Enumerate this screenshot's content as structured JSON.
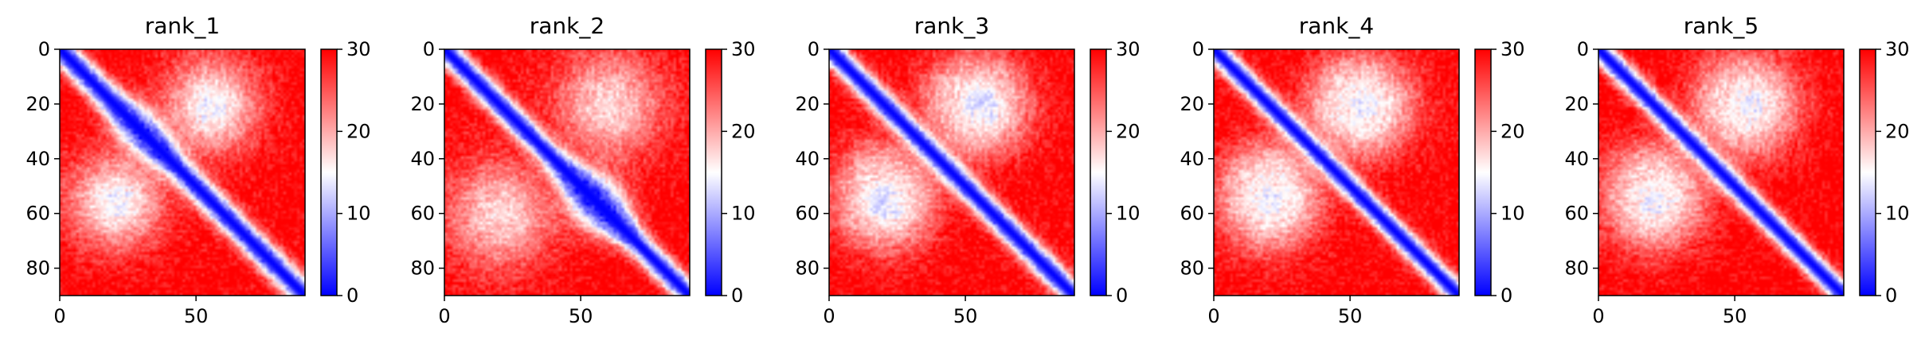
{
  "chart_data": [
    {
      "type": "heatmap",
      "title": "rank_1",
      "n": 90,
      "xticks": [
        0,
        50
      ],
      "yticks": [
        0,
        20,
        40,
        60,
        80
      ],
      "xlim": [
        0,
        90
      ],
      "ylim": [
        90,
        0
      ],
      "colorbar": {
        "ticks": [
          0,
          10,
          20,
          30
        ],
        "range": [
          0,
          30
        ],
        "colormap": "bwr",
        "colors": [
          "#0000ff",
          "#ffffff",
          "#ff0000"
        ]
      },
      "band_width": 6.5,
      "features": [
        {
          "type": "widening",
          "center": 30,
          "extra": 4
        },
        {
          "type": "blob",
          "i": 55,
          "j": 20,
          "r": 12,
          "value": 14
        }
      ]
    },
    {
      "type": "heatmap",
      "title": "rank_2",
      "n": 90,
      "xticks": [
        0,
        50
      ],
      "yticks": [
        0,
        20,
        40,
        60,
        80
      ],
      "xlim": [
        0,
        90
      ],
      "ylim": [
        90,
        0
      ],
      "colorbar": {
        "ticks": [
          0,
          10,
          20,
          30
        ],
        "range": [
          0,
          30
        ],
        "colormap": "bwr",
        "colors": [
          "#0000ff",
          "#ffffff",
          "#ff0000"
        ]
      },
      "band_width": 6,
      "features": [
        {
          "type": "widening",
          "center": 55,
          "extra": 7
        },
        {
          "type": "blob",
          "i": 60,
          "j": 20,
          "r": 14,
          "value": 17
        }
      ]
    },
    {
      "type": "heatmap",
      "title": "rank_3",
      "n": 90,
      "xticks": [
        0,
        50
      ],
      "yticks": [
        0,
        20,
        40,
        60,
        80
      ],
      "xlim": [
        0,
        90
      ],
      "ylim": [
        90,
        0
      ],
      "colorbar": {
        "ticks": [
          0,
          10,
          20,
          30
        ],
        "range": [
          0,
          30
        ],
        "colormap": "bwr",
        "colors": [
          "#0000ff",
          "#ffffff",
          "#ff0000"
        ]
      },
      "band_width": 6,
      "features": [
        {
          "type": "blob",
          "i": 55,
          "j": 20,
          "r": 12,
          "value": 13
        },
        {
          "type": "blob",
          "i": 20,
          "j": 50,
          "r": 10,
          "value": 18
        }
      ]
    },
    {
      "type": "heatmap",
      "title": "rank_4",
      "n": 90,
      "xticks": [
        0,
        50
      ],
      "yticks": [
        0,
        20,
        40,
        60,
        80
      ],
      "xlim": [
        0,
        90
      ],
      "ylim": [
        90,
        0
      ],
      "colorbar": {
        "ticks": [
          0,
          10,
          20,
          30
        ],
        "range": [
          0,
          30
        ],
        "colormap": "bwr",
        "colors": [
          "#0000ff",
          "#ffffff",
          "#ff0000"
        ]
      },
      "band_width": 5.5,
      "features": [
        {
          "type": "blob",
          "i": 55,
          "j": 20,
          "r": 12,
          "value": 14
        },
        {
          "type": "blob",
          "i": 20,
          "j": 50,
          "r": 10,
          "value": 16
        }
      ]
    },
    {
      "type": "heatmap",
      "title": "rank_5",
      "n": 90,
      "xticks": [
        0,
        50
      ],
      "yticks": [
        0,
        20,
        40,
        60,
        80
      ],
      "xlim": [
        0,
        90
      ],
      "ylim": [
        90,
        0
      ],
      "colorbar": {
        "ticks": [
          0,
          10,
          20,
          30
        ],
        "range": [
          0,
          30
        ],
        "colormap": "bwr",
        "colors": [
          "#0000ff",
          "#ffffff",
          "#ff0000"
        ]
      },
      "band_width": 5.5,
      "features": [
        {
          "type": "blob",
          "i": 55,
          "j": 20,
          "r": 12,
          "value": 14
        },
        {
          "type": "blob",
          "i": 20,
          "j": 50,
          "r": 10,
          "value": 17
        }
      ]
    }
  ]
}
